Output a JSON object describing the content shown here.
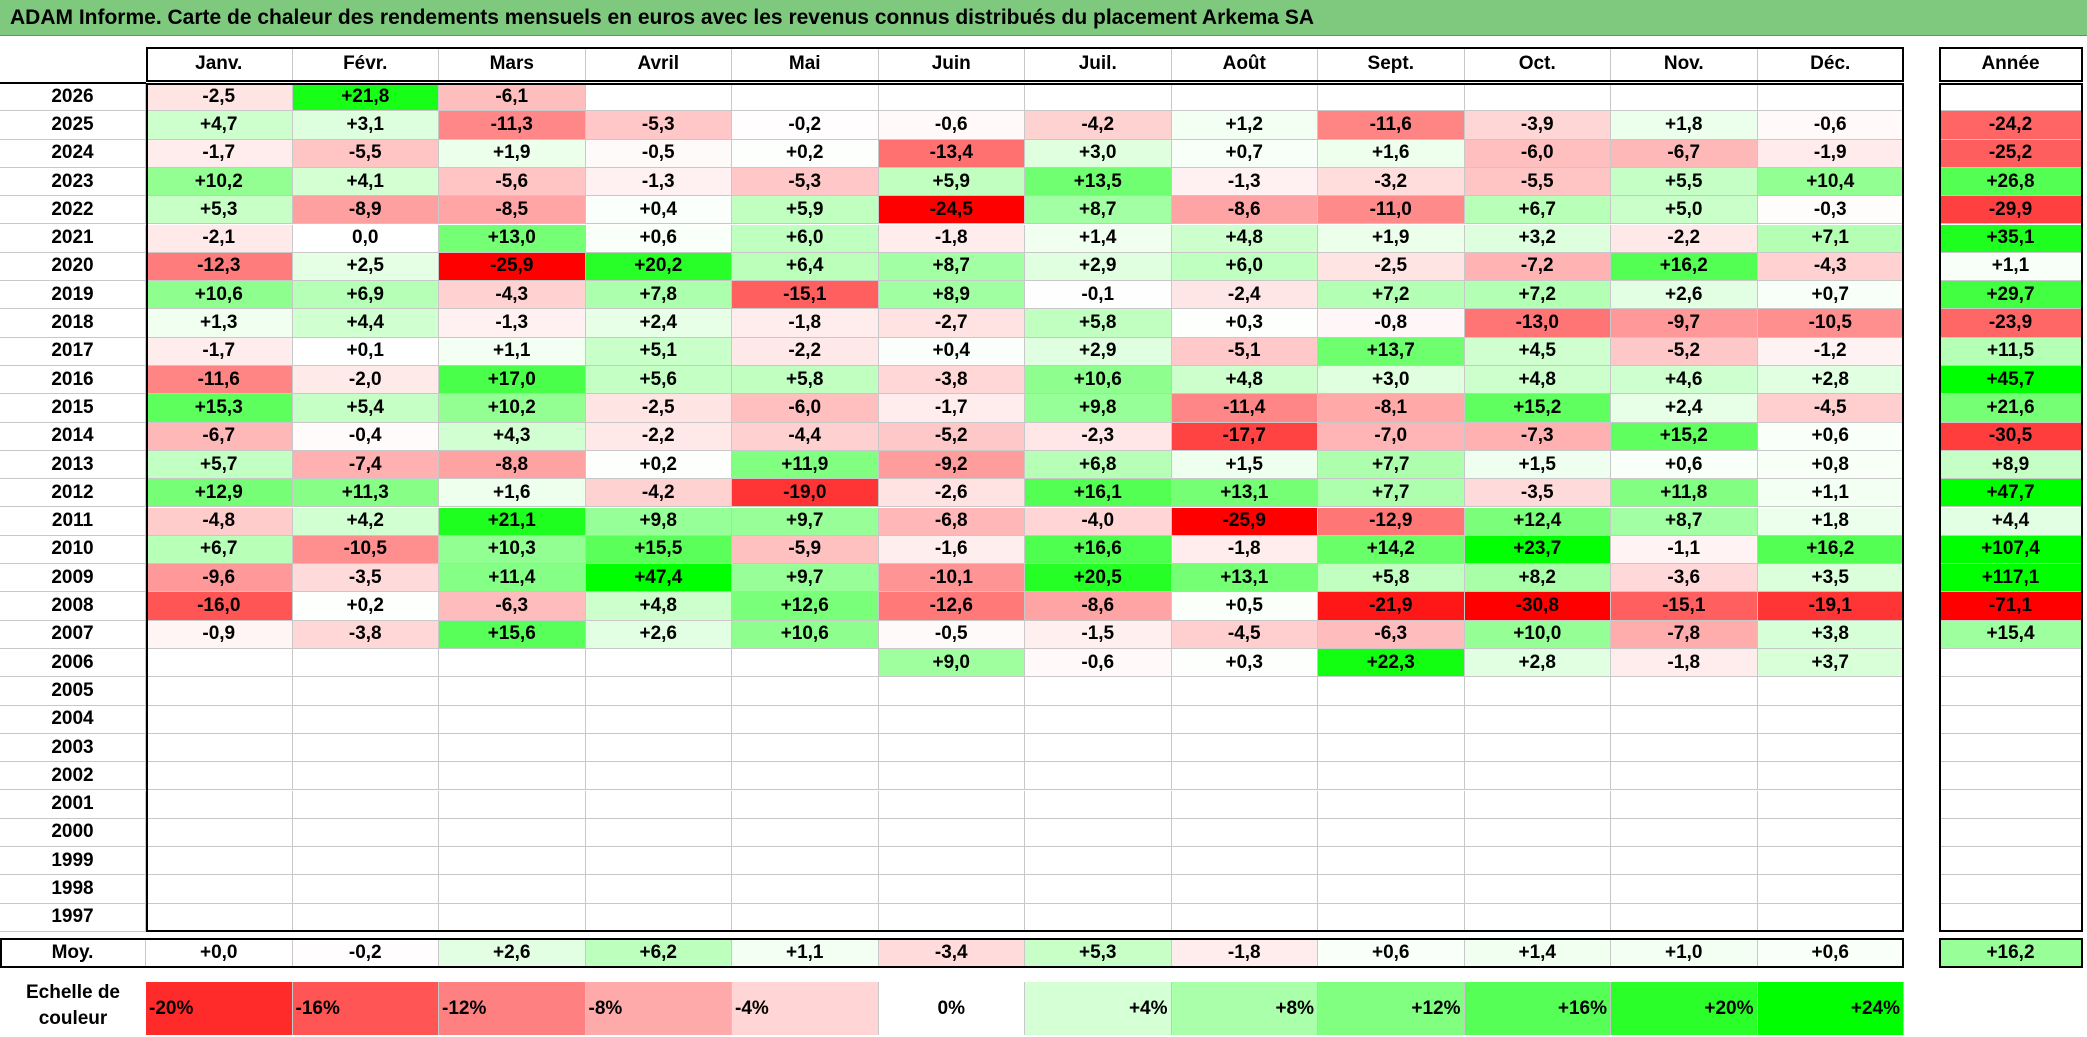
{
  "title": "ADAM Informe. Carte de chaleur des rendements mensuels en euros avec les revenus connus distribués du placement Arkema SA",
  "chart_data": {
    "type": "heatmap",
    "title": "ADAM Informe. Carte de chaleur des rendements mensuels en euros avec les revenus connus distribués du placement Arkema SA",
    "columns": [
      "Janv.",
      "Févr.",
      "Mars",
      "Avril",
      "Mai",
      "Juin",
      "Juil.",
      "Août",
      "Sept.",
      "Oct.",
      "Nov.",
      "Déc."
    ],
    "year_column_label": "Année",
    "average_label": "Moy.",
    "rows": [
      {
        "year": "2026",
        "values": [
          "-2,5",
          "+21,8",
          "-6,1",
          "",
          "",
          "",
          "",
          "",
          "",
          "",
          "",
          ""
        ],
        "annual": ""
      },
      {
        "year": "2025",
        "values": [
          "+4,7",
          "+3,1",
          "-11,3",
          "-5,3",
          "-0,2",
          "-0,6",
          "-4,2",
          "+1,2",
          "-11,6",
          "-3,9",
          "+1,8",
          "-0,6"
        ],
        "annual": "-24,2"
      },
      {
        "year": "2024",
        "values": [
          "-1,7",
          "-5,5",
          "+1,9",
          "-0,5",
          "+0,2",
          "-13,4",
          "+3,0",
          "+0,7",
          "+1,6",
          "-6,0",
          "-6,7",
          "-1,9"
        ],
        "annual": "-25,2"
      },
      {
        "year": "2023",
        "values": [
          "+10,2",
          "+4,1",
          "-5,6",
          "-1,3",
          "-5,3",
          "+5,9",
          "+13,5",
          "-1,3",
          "-3,2",
          "-5,5",
          "+5,5",
          "+10,4"
        ],
        "annual": "+26,8"
      },
      {
        "year": "2022",
        "values": [
          "+5,3",
          "-8,9",
          "-8,5",
          "+0,4",
          "+5,9",
          "-24,5",
          "+8,7",
          "-8,6",
          "-11,0",
          "+6,7",
          "+5,0",
          "-0,3"
        ],
        "annual": "-29,9"
      },
      {
        "year": "2021",
        "values": [
          "-2,1",
          "0,0",
          "+13,0",
          "+0,6",
          "+6,0",
          "-1,8",
          "+1,4",
          "+4,8",
          "+1,9",
          "+3,2",
          "-2,2",
          "+7,1"
        ],
        "annual": "+35,1"
      },
      {
        "year": "2020",
        "values": [
          "-12,3",
          "+2,5",
          "-25,9",
          "+20,2",
          "+6,4",
          "+8,7",
          "+2,9",
          "+6,0",
          "-2,5",
          "-7,2",
          "+16,2",
          "-4,3"
        ],
        "annual": "+1,1"
      },
      {
        "year": "2019",
        "values": [
          "+10,6",
          "+6,9",
          "-4,3",
          "+7,8",
          "-15,1",
          "+8,9",
          "-0,1",
          "-2,4",
          "+7,2",
          "+7,2",
          "+2,6",
          "+0,7"
        ],
        "annual": "+29,7"
      },
      {
        "year": "2018",
        "values": [
          "+1,3",
          "+4,4",
          "-1,3",
          "+2,4",
          "-1,8",
          "-2,7",
          "+5,8",
          "+0,3",
          "-0,8",
          "-13,0",
          "-9,7",
          "-10,5"
        ],
        "annual": "-23,9"
      },
      {
        "year": "2017",
        "values": [
          "-1,7",
          "+0,1",
          "+1,1",
          "+5,1",
          "-2,2",
          "+0,4",
          "+2,9",
          "-5,1",
          "+13,7",
          "+4,5",
          "-5,2",
          "-1,2"
        ],
        "annual": "+11,5"
      },
      {
        "year": "2016",
        "values": [
          "-11,6",
          "-2,0",
          "+17,0",
          "+5,6",
          "+5,8",
          "-3,8",
          "+10,6",
          "+4,8",
          "+3,0",
          "+4,8",
          "+4,6",
          "+2,8"
        ],
        "annual": "+45,7"
      },
      {
        "year": "2015",
        "values": [
          "+15,3",
          "+5,4",
          "+10,2",
          "-2,5",
          "-6,0",
          "-1,7",
          "+9,8",
          "-11,4",
          "-8,1",
          "+15,2",
          "+2,4",
          "-4,5"
        ],
        "annual": "+21,6"
      },
      {
        "year": "2014",
        "values": [
          "-6,7",
          "-0,4",
          "+4,3",
          "-2,2",
          "-4,4",
          "-5,2",
          "-2,3",
          "-17,7",
          "-7,0",
          "-7,3",
          "+15,2",
          "+0,6"
        ],
        "annual": "-30,5"
      },
      {
        "year": "2013",
        "values": [
          "+5,7",
          "-7,4",
          "-8,8",
          "+0,2",
          "+11,9",
          "-9,2",
          "+6,8",
          "+1,5",
          "+7,7",
          "+1,5",
          "+0,6",
          "+0,8"
        ],
        "annual": "+8,9"
      },
      {
        "year": "2012",
        "values": [
          "+12,9",
          "+11,3",
          "+1,6",
          "-4,2",
          "-19,0",
          "-2,6",
          "+16,1",
          "+13,1",
          "+7,7",
          "-3,5",
          "+11,8",
          "+1,1"
        ],
        "annual": "+47,7"
      },
      {
        "year": "2011",
        "values": [
          "-4,8",
          "+4,2",
          "+21,1",
          "+9,8",
          "+9,7",
          "-6,8",
          "-4,0",
          "-25,9",
          "-12,9",
          "+12,4",
          "+8,7",
          "+1,8"
        ],
        "annual": "+4,4"
      },
      {
        "year": "2010",
        "values": [
          "+6,7",
          "-10,5",
          "+10,3",
          "+15,5",
          "-5,9",
          "-1,6",
          "+16,6",
          "-1,8",
          "+14,2",
          "+23,7",
          "-1,1",
          "+16,2"
        ],
        "annual": "+107,4"
      },
      {
        "year": "2009",
        "values": [
          "-9,6",
          "-3,5",
          "+11,4",
          "+47,4",
          "+9,7",
          "-10,1",
          "+20,5",
          "+13,1",
          "+5,8",
          "+8,2",
          "-3,6",
          "+3,5"
        ],
        "annual": "+117,1"
      },
      {
        "year": "2008",
        "values": [
          "-16,0",
          "+0,2",
          "-6,3",
          "+4,8",
          "+12,6",
          "-12,6",
          "-8,6",
          "+0,5",
          "-21,9",
          "-30,8",
          "-15,1",
          "-19,1"
        ],
        "annual": "-71,1"
      },
      {
        "year": "2007",
        "values": [
          "-0,9",
          "-3,8",
          "+15,6",
          "+2,6",
          "+10,6",
          "-0,5",
          "-1,5",
          "-4,5",
          "-6,3",
          "+10,0",
          "-7,8",
          "+3,8"
        ],
        "annual": "+15,4"
      },
      {
        "year": "2006",
        "values": [
          "",
          "",
          "",
          "",
          "",
          "+9,0",
          "-0,6",
          "+0,3",
          "+22,3",
          "+2,8",
          "-1,8",
          "+3,7"
        ],
        "annual": ""
      },
      {
        "year": "2005",
        "values": [
          "",
          "",
          "",
          "",
          "",
          "",
          "",
          "",
          "",
          "",
          "",
          ""
        ],
        "annual": ""
      },
      {
        "year": "2004",
        "values": [
          "",
          "",
          "",
          "",
          "",
          "",
          "",
          "",
          "",
          "",
          "",
          ""
        ],
        "annual": ""
      },
      {
        "year": "2003",
        "values": [
          "",
          "",
          "",
          "",
          "",
          "",
          "",
          "",
          "",
          "",
          "",
          ""
        ],
        "annual": ""
      },
      {
        "year": "2002",
        "values": [
          "",
          "",
          "",
          "",
          "",
          "",
          "",
          "",
          "",
          "",
          "",
          ""
        ],
        "annual": ""
      },
      {
        "year": "2001",
        "values": [
          "",
          "",
          "",
          "",
          "",
          "",
          "",
          "",
          "",
          "",
          "",
          ""
        ],
        "annual": ""
      },
      {
        "year": "2000",
        "values": [
          "",
          "",
          "",
          "",
          "",
          "",
          "",
          "",
          "",
          "",
          "",
          ""
        ],
        "annual": ""
      },
      {
        "year": "1999",
        "values": [
          "",
          "",
          "",
          "",
          "",
          "",
          "",
          "",
          "",
          "",
          "",
          ""
        ],
        "annual": ""
      },
      {
        "year": "1998",
        "values": [
          "",
          "",
          "",
          "",
          "",
          "",
          "",
          "",
          "",
          "",
          "",
          ""
        ],
        "annual": ""
      },
      {
        "year": "1997",
        "values": [
          "",
          "",
          "",
          "",
          "",
          "",
          "",
          "",
          "",
          "",
          "",
          ""
        ],
        "annual": ""
      }
    ],
    "average": {
      "values": [
        "+0,0",
        "-0,2",
        "+2,6",
        "+6,2",
        "+1,1",
        "-3,4",
        "+5,3",
        "-1,8",
        "+0,6",
        "+1,4",
        "+1,0",
        "+0,6"
      ],
      "annual": "+16,2"
    },
    "color_scale": {
      "label": "Echelle de couleur",
      "stops": [
        "-20%",
        "-16%",
        "-12%",
        "-8%",
        "-4%",
        "0%",
        "+4%",
        "+8%",
        "+12%",
        "+16%",
        "+20%",
        "+24%"
      ],
      "negative_color": "#ff0000",
      "neutral_color": "#ffffff",
      "positive_color": "#00ff00"
    }
  }
}
